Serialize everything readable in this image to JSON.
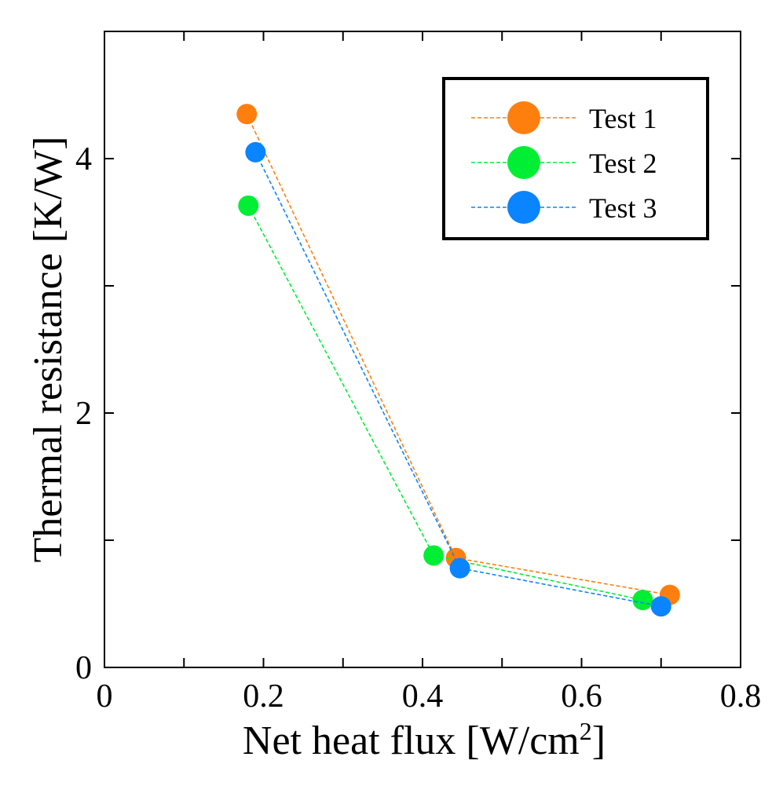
{
  "chart_data": {
    "type": "line",
    "xlabel": "Net heat flux [W/cm",
    "xlabel_sup": "2",
    "xlabel_end": "]",
    "ylabel": "Thermal resistance [K/W]",
    "xlim": [
      0,
      0.8
    ],
    "ylim": [
      0,
      5
    ],
    "xticks": [
      0,
      0.2,
      0.4,
      0.6,
      0.8
    ],
    "xtick_labels": [
      "0",
      "0.2",
      "0.4",
      "0.6",
      "0.8"
    ],
    "x_minor_ticks": [
      0.1,
      0.3,
      0.5,
      0.7
    ],
    "yticks": [
      0,
      2,
      4
    ],
    "ytick_labels": [
      "0",
      "2",
      "4"
    ],
    "y_minor_ticks": [
      1,
      3
    ],
    "grid": false,
    "legend_position": "top-right",
    "series": [
      {
        "name": "Test 1",
        "color": "#ff7f0e",
        "points": [
          [
            0.179,
            4.35
          ],
          [
            0.442,
            0.86
          ],
          [
            0.711,
            0.57
          ]
        ]
      },
      {
        "name": "Test 2",
        "color": "#00ee33",
        "points": [
          [
            0.181,
            3.63
          ],
          [
            0.414,
            0.88
          ],
          [
            0.677,
            0.53
          ]
        ]
      },
      {
        "name": "Test 3",
        "color": "#0a84ff",
        "points": [
          [
            0.19,
            4.05
          ],
          [
            0.447,
            0.78
          ],
          [
            0.7,
            0.48
          ]
        ]
      }
    ]
  }
}
